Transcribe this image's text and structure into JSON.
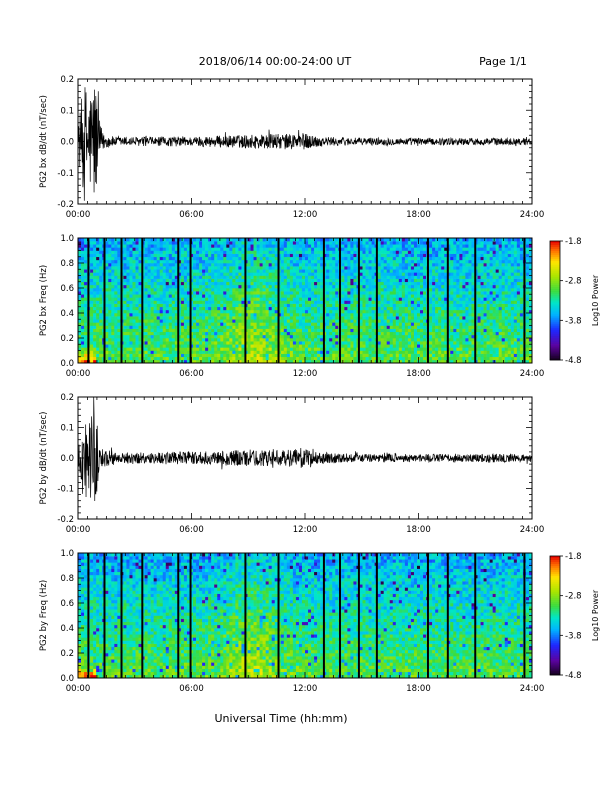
{
  "header": {
    "title": "2018/06/14  00:00-24:00 UT",
    "page": "Page 1/1"
  },
  "footer": {
    "xlabel": "Universal Time (hh:mm)"
  },
  "chart_data": [
    {
      "type": "line",
      "ylabel": "PG2 bx dB/dt (nT/sec)",
      "ylim": [
        -0.2,
        0.2
      ],
      "yticks": [
        "-0.2",
        "-0.1",
        "0.0",
        "0.1",
        "0.2"
      ],
      "xticks": [
        "00:00",
        "06:00",
        "12:00",
        "18:00",
        "24:00"
      ],
      "xlim_hours": [
        0,
        24
      ],
      "series": [
        {
          "x_hours": [
            0.0,
            0.3,
            0.6,
            0.9,
            1.1,
            1.3,
            1.6,
            2,
            3,
            4,
            5,
            6,
            7,
            8,
            9,
            10,
            11,
            11.7,
            12,
            12.5,
            13,
            14,
            15,
            16,
            17,
            18,
            19,
            20,
            21,
            22,
            23,
            24
          ],
          "envelope": [
            0.04,
            0.2,
            0.16,
            0.22,
            0.08,
            0.03,
            0.02,
            0.015,
            0.015,
            0.014,
            0.016,
            0.015,
            0.018,
            0.02,
            0.022,
            0.025,
            0.024,
            0.03,
            0.026,
            0.02,
            0.015,
            0.013,
            0.012,
            0.012,
            0.011,
            0.012,
            0.011,
            0.012,
            0.011,
            0.012,
            0.011,
            0.011
          ]
        }
      ]
    },
    {
      "type": "heatmap",
      "ylabel": "PG2 bx Freq (Hz)",
      "ylim": [
        0.0,
        1.0
      ],
      "yticks": [
        "0.0",
        "0.2",
        "0.4",
        "0.6",
        "0.8",
        "1.0"
      ],
      "xticks": [
        "00:00",
        "06:00",
        "12:00",
        "18:00",
        "24:00"
      ],
      "xlim_hours": [
        0,
        24
      ],
      "gap_lines_hours": [
        0.55,
        1.4,
        2.3,
        3.4,
        5.3,
        5.95,
        8.85,
        10.6,
        13.0,
        13.85,
        14.85,
        15.8,
        18.5,
        19.55,
        21.0,
        23.6
      ],
      "colorbar": {
        "label": "Log10 Power",
        "ticks": [
          "-1.8",
          "-2.8",
          "-3.8",
          "-4.8"
        ],
        "range": [
          -4.8,
          -1.8
        ]
      }
    },
    {
      "type": "line",
      "ylabel": "PG2 by dB/dt (nT/sec)",
      "ylim": [
        -0.2,
        0.2
      ],
      "yticks": [
        "-0.2",
        "-0.1",
        "0.0",
        "0.1",
        "0.2"
      ],
      "xticks": [
        "00:00",
        "06:00",
        "12:00",
        "18:00",
        "24:00"
      ],
      "xlim_hours": [
        0,
        24
      ],
      "series": [
        {
          "x_hours": [
            0.0,
            0.3,
            0.6,
            0.9,
            1.1,
            1.3,
            1.6,
            2,
            3,
            4,
            5,
            6,
            7,
            8,
            9,
            10,
            11,
            11.7,
            12,
            12.5,
            13,
            14,
            15,
            16,
            17,
            18,
            19,
            20,
            21,
            22,
            23,
            24
          ],
          "envelope": [
            0.03,
            0.14,
            0.12,
            0.18,
            0.06,
            0.03,
            0.025,
            0.02,
            0.02,
            0.018,
            0.022,
            0.02,
            0.022,
            0.026,
            0.028,
            0.026,
            0.025,
            0.035,
            0.028,
            0.022,
            0.02,
            0.015,
            0.014,
            0.014,
            0.013,
            0.014,
            0.013,
            0.014,
            0.013,
            0.014,
            0.013,
            0.013
          ]
        }
      ]
    },
    {
      "type": "heatmap",
      "ylabel": "PG2 by Freq (Hz)",
      "ylim": [
        0.0,
        1.0
      ],
      "yticks": [
        "0.0",
        "0.2",
        "0.4",
        "0.6",
        "0.8",
        "1.0"
      ],
      "xticks": [
        "00:00",
        "06:00",
        "12:00",
        "18:00",
        "24:00"
      ],
      "xlim_hours": [
        0,
        24
      ],
      "gap_lines_hours": [
        0.55,
        1.4,
        2.3,
        3.4,
        5.3,
        5.95,
        8.85,
        10.6,
        13.0,
        13.85,
        14.85,
        15.8,
        18.5,
        19.55,
        21.0,
        23.6
      ],
      "colorbar": {
        "label": "Log10 Power",
        "ticks": [
          "-1.8",
          "-2.8",
          "-3.8",
          "-4.8"
        ],
        "range": [
          -4.8,
          -1.8
        ]
      }
    }
  ]
}
